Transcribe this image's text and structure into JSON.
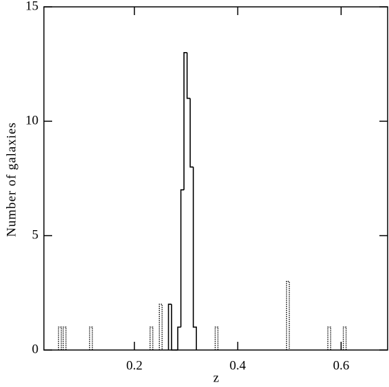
{
  "chart_data": {
    "type": "histogram",
    "xlabel": "z",
    "ylabel": "Number of galaxies",
    "xlim": [
      0.025,
      0.69
    ],
    "ylim": [
      0,
      15
    ],
    "xticks": [
      0.2,
      0.4,
      0.6
    ],
    "yticks": [
      0,
      5,
      10,
      15
    ],
    "series": [
      {
        "style": "solid",
        "color": "#000000",
        "bins": [
          0.266,
          0.272,
          0.278,
          0.284,
          0.29,
          0.296,
          0.302,
          0.308,
          0.314,
          0.32
        ],
        "values": [
          2,
          0,
          0,
          1,
          7,
          13,
          11,
          8,
          1
        ]
      },
      {
        "style": "dotted",
        "color": "#000000",
        "x": [
          0.056,
          0.065,
          0.116,
          0.233,
          0.251,
          0.359,
          0.497,
          0.577,
          0.607
        ],
        "values": [
          1,
          1,
          1,
          1,
          2,
          1,
          3,
          1,
          1
        ]
      }
    ]
  }
}
